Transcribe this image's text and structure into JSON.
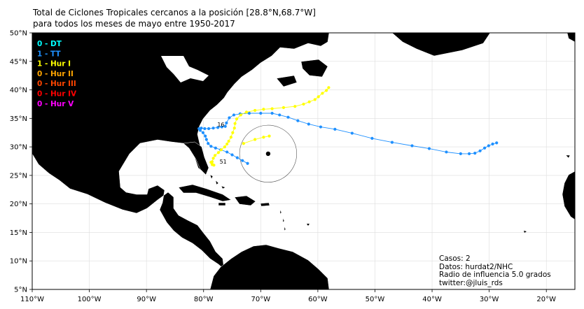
{
  "title_line1": "Total de Ciclones Tropicales cercanos a la posición [28.8°N,68.7°W]",
  "title_line2": "para todos los meses de mayo entre 1950-2017",
  "center": {
    "lat": 28.8,
    "lon": -68.7,
    "radius_deg": 5.0
  },
  "legend": [
    {
      "count": "0",
      "label": "DT",
      "color": "#00ffff"
    },
    {
      "count": "1",
      "label": "TT",
      "color": "#1e90ff"
    },
    {
      "count": "1",
      "label": "Hur I",
      "color": "#ffff00"
    },
    {
      "count": "0",
      "label": "Hur II",
      "color": "#ffa500"
    },
    {
      "count": "0",
      "label": "Hur III",
      "color": "#ff4500"
    },
    {
      "count": "0",
      "label": "Hur IV",
      "color": "#ff0000"
    },
    {
      "count": "0",
      "label": "Hur V",
      "color": "#ff00ff"
    }
  ],
  "info": {
    "cases": "Casos: 2",
    "source": "Datos: hurdat2/NHC",
    "radius": "Radio de influencia 5.0 grados",
    "twitter": "twitter:@jluis_rds"
  },
  "chart_data": {
    "type": "scatter",
    "xlim": [
      -110,
      -15
    ],
    "ylim": [
      5,
      50
    ],
    "x_ticks": [
      "110°W",
      "100°W",
      "90°W",
      "80°W",
      "70°W",
      "60°W",
      "50°W",
      "40°W",
      "30°W",
      "20°W"
    ],
    "x_tick_values": [
      -110,
      -100,
      -90,
      -80,
      -70,
      -60,
      -50,
      -40,
      -30,
      -20
    ],
    "y_ticks": [
      "5°N",
      "10°N",
      "15°N",
      "20°N",
      "25°N",
      "30°N",
      "35°N",
      "40°N",
      "45°N",
      "50°N"
    ],
    "y_tick_values": [
      5,
      10,
      15,
      20,
      25,
      30,
      35,
      40,
      45,
      50
    ],
    "grid": true,
    "series": [
      {
        "name": "TT",
        "color": "#1e90ff",
        "label": "16",
        "points": [
          [
            -72.3,
            27.1
          ],
          [
            -73.2,
            27.6
          ],
          [
            -74.1,
            28.1
          ],
          [
            -75.0,
            28.6
          ],
          [
            -75.9,
            29.1
          ],
          [
            -77.0,
            29.5
          ],
          [
            -77.9,
            29.8
          ],
          [
            -78.7,
            30.1
          ],
          [
            -79.2,
            30.6
          ],
          [
            -79.5,
            31.3
          ],
          [
            -79.7,
            31.9
          ],
          [
            -80.1,
            32.5
          ],
          [
            -80.6,
            32.9
          ],
          [
            -80.8,
            33.2
          ],
          [
            -80.4,
            33.3
          ],
          [
            -79.8,
            33.2
          ],
          [
            -79.1,
            33.2
          ],
          [
            -78.3,
            33.3
          ],
          [
            -77.5,
            33.4
          ],
          [
            -76.8,
            33.5
          ],
          [
            -76.2,
            33.6
          ],
          [
            -76.0,
            34.2
          ],
          [
            -75.5,
            35.1
          ],
          [
            -74.7,
            35.6
          ],
          [
            -73.6,
            35.8
          ],
          [
            -72.0,
            35.9
          ],
          [
            -70.0,
            35.9
          ],
          [
            -68.0,
            35.9
          ],
          [
            -66.7,
            35.6
          ],
          [
            -65.2,
            35.2
          ],
          [
            -63.5,
            34.6
          ],
          [
            -61.6,
            34.0
          ],
          [
            -59.5,
            33.5
          ],
          [
            -57.0,
            33.1
          ],
          [
            -54.0,
            32.4
          ],
          [
            -50.5,
            31.5
          ],
          [
            -47.0,
            30.8
          ],
          [
            -43.5,
            30.2
          ],
          [
            -40.5,
            29.7
          ],
          [
            -37.5,
            29.1
          ],
          [
            -35.0,
            28.8
          ],
          [
            -33.5,
            28.8
          ],
          [
            -32.5,
            28.9
          ],
          [
            -31.6,
            29.3
          ],
          [
            -30.8,
            29.8
          ],
          [
            -30.1,
            30.2
          ],
          [
            -29.4,
            30.5
          ],
          [
            -28.7,
            30.7
          ]
        ]
      },
      {
        "name": "Hur I",
        "color": "#ffff00",
        "label": "51",
        "points": [
          [
            -78.7,
            27.3
          ],
          [
            -78.5,
            26.9
          ],
          [
            -78.2,
            26.8
          ],
          [
            -78.5,
            27.4
          ],
          [
            -78.3,
            28.0
          ],
          [
            -78.0,
            28.5
          ],
          [
            -77.4,
            29.0
          ],
          [
            -76.9,
            29.5
          ],
          [
            -76.3,
            30.0
          ],
          [
            -75.9,
            30.5
          ],
          [
            -75.6,
            31.0
          ],
          [
            -75.2,
            31.7
          ],
          [
            -74.9,
            32.5
          ],
          [
            -74.6,
            33.3
          ],
          [
            -74.5,
            34.1
          ],
          [
            -74.2,
            34.9
          ],
          [
            -73.5,
            35.6
          ],
          [
            -72.5,
            36.1
          ],
          [
            -71.0,
            36.4
          ],
          [
            -69.5,
            36.6
          ],
          [
            -68.0,
            36.7
          ],
          [
            -66.0,
            36.9
          ],
          [
            -64.0,
            37.1
          ],
          [
            -62.5,
            37.5
          ],
          [
            -61.5,
            37.9
          ],
          [
            -60.5,
            38.3
          ],
          [
            -59.9,
            38.8
          ],
          [
            -59.2,
            39.4
          ],
          [
            -58.5,
            39.9
          ],
          [
            -58.1,
            40.4
          ],
          [
            -73.0,
            30.6
          ],
          [
            -71.0,
            31.3
          ],
          [
            -69.5,
            31.7
          ],
          [
            -68.5,
            31.9
          ]
        ]
      }
    ]
  }
}
